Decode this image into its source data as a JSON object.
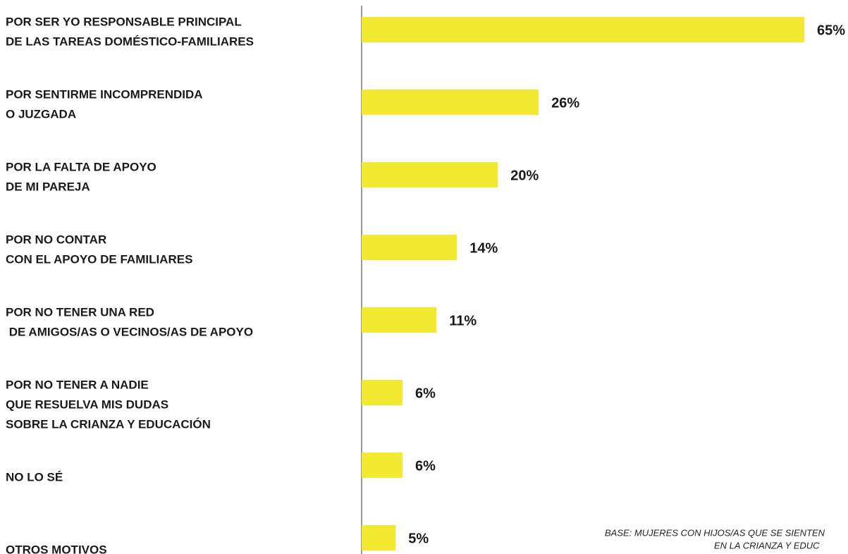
{
  "chart_data": {
    "type": "barh",
    "categories": [
      [
        "POR SER YO RESPONSABLE PRINCIPAL",
        "DE LAS TAREAS DOMÉSTICO-FAMILIARES"
      ],
      [
        "POR SENTIRME INCOMPRENDIDA",
        "O JUZGADA"
      ],
      [
        "POR LA FALTA DE APOYO",
        "DE MI PAREJA"
      ],
      [
        "POR NO CONTAR",
        "CON EL APOYO DE FAMILIARES"
      ],
      [
        "POR NO TENER UNA RED",
        " DE AMIGOS/AS O VECINOS/AS DE APOYO"
      ],
      [
        "POR NO TENER A NADIE",
        "QUE RESUELVA MIS DUDAS",
        "SOBRE LA CRIANZA Y EDUCACIÓN"
      ],
      [
        "NO LO SÉ"
      ],
      [
        "OTROS MOTIVOS"
      ]
    ],
    "values": [
      65,
      26,
      20,
      14,
      11,
      6,
      6,
      5
    ],
    "value_labels": [
      "65%",
      "26%",
      "20%",
      "14%",
      "11%",
      "6%",
      "6%",
      "5%"
    ],
    "color": "#f2ea30",
    "note": [
      "BASE: MUJERES CON HIJOS/AS QUE SE SIENTEN",
      "EN LA CRIANZA Y EDUC"
    ]
  }
}
